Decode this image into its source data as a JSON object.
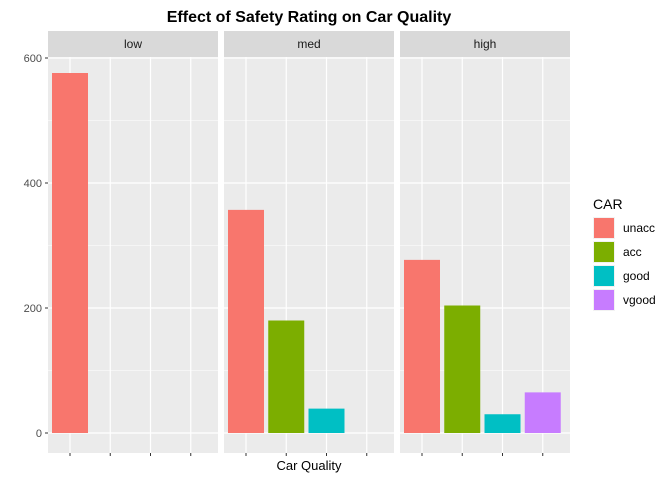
{
  "chart_data": {
    "type": "bar",
    "title": "Effect of Safety Rating on Car Quality",
    "xlabel": "Car Quality",
    "ylabel": "",
    "ylim": [
      0,
      620
    ],
    "yticks": [
      0,
      200,
      400,
      600
    ],
    "grid": true,
    "facets": [
      "low",
      "med",
      "high"
    ],
    "categories": [
      "unacc",
      "acc",
      "good",
      "vgood"
    ],
    "series": [
      {
        "facet": "low",
        "values": [
          576,
          0,
          0,
          0
        ]
      },
      {
        "facet": "med",
        "values": [
          357,
          180,
          39,
          0
        ]
      },
      {
        "facet": "high",
        "values": [
          277,
          204,
          30,
          65
        ]
      }
    ],
    "legend": {
      "title": "CAR",
      "position": "right",
      "entries": [
        {
          "label": "unacc",
          "color": "#F8766D"
        },
        {
          "label": "acc",
          "color": "#7CAE00"
        },
        {
          "label": "good",
          "color": "#00BFC4"
        },
        {
          "label": "vgood",
          "color": "#C77CFF"
        }
      ]
    },
    "colors": {
      "panel_background": "#EBEBEB",
      "strip_background": "#D9D9D9",
      "grid_line": "#FFFFFF"
    }
  }
}
